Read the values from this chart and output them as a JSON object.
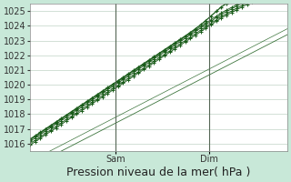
{
  "title": "Pression niveau de la mer( hPa )",
  "fig_bg_color": "#c8e8d8",
  "plot_bg_color": "#ffffff",
  "grid_color": "#b0c8b8",
  "line_color": "#1a5c1a",
  "ylim": [
    1015.5,
    1025.5
  ],
  "yticks": [
    1016,
    1017,
    1018,
    1019,
    1020,
    1021,
    1022,
    1023,
    1024,
    1025
  ],
  "xlim": [
    0,
    66
  ],
  "sam_x": 22,
  "dim_x": 46,
  "sam_label": "Sam",
  "dim_label": "Dim",
  "title_fontsize": 9,
  "tick_fontsize": 7
}
